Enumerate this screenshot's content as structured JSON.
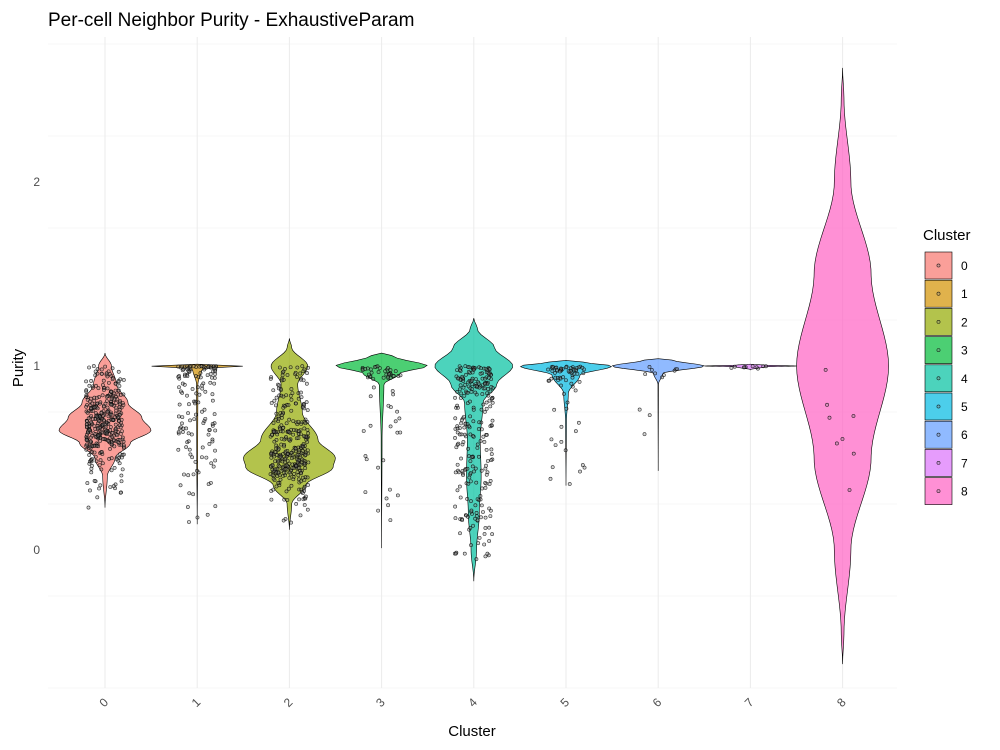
{
  "chart_data": {
    "type": "violin",
    "title": "Per-cell Neighbor Purity - ExhaustiveParam",
    "xlabel": "Cluster",
    "ylabel": "Purity",
    "ylim": [
      -0.75,
      2.75
    ],
    "yticks": [
      0,
      1,
      2
    ],
    "grid": true,
    "legend": {
      "title": "Cluster",
      "placement": "right"
    },
    "categories": [
      "0",
      "1",
      "2",
      "3",
      "4",
      "5",
      "6",
      "7",
      "8"
    ],
    "colors": [
      "#F8766D",
      "#D39200",
      "#93AA00",
      "#00BA38",
      "#00C19F",
      "#00B9E3",
      "#619CFF",
      "#DB72FB",
      "#FF61C3"
    ],
    "series": [
      {
        "name": "0",
        "min": 0.23,
        "max": 1.07,
        "median": 0.67,
        "profile": [
          [
            0.23,
            0.0
          ],
          [
            0.4,
            0.05
          ],
          [
            0.5,
            0.22
          ],
          [
            0.58,
            0.55
          ],
          [
            0.65,
            1.0
          ],
          [
            0.72,
            0.8
          ],
          [
            0.8,
            0.5
          ],
          [
            0.9,
            0.25
          ],
          [
            1.0,
            0.14
          ],
          [
            1.07,
            0.0
          ]
        ]
      },
      {
        "name": "1",
        "min": 0.14,
        "max": 1.01,
        "median": 1.0,
        "profile": [
          [
            0.14,
            0.0
          ],
          [
            0.5,
            0.01
          ],
          [
            0.9,
            0.015
          ],
          [
            0.985,
            0.1
          ],
          [
            1.0,
            1.0
          ],
          [
            1.01,
            0.0
          ]
        ]
      },
      {
        "name": "2",
        "min": 0.11,
        "max": 1.15,
        "median": 0.5,
        "profile": [
          [
            0.11,
            0.0
          ],
          [
            0.25,
            0.05
          ],
          [
            0.35,
            0.35
          ],
          [
            0.45,
            0.95
          ],
          [
            0.5,
            1.0
          ],
          [
            0.6,
            0.62
          ],
          [
            0.75,
            0.28
          ],
          [
            0.9,
            0.18
          ],
          [
            1.0,
            0.4
          ],
          [
            1.1,
            0.05
          ],
          [
            1.15,
            0.0
          ]
        ]
      },
      {
        "name": "3",
        "min": 0.01,
        "max": 1.07,
        "median": 1.0,
        "profile": [
          [
            0.01,
            0.0
          ],
          [
            0.6,
            0.01
          ],
          [
            0.9,
            0.05
          ],
          [
            0.96,
            0.4
          ],
          [
            1.0,
            1.0
          ],
          [
            1.05,
            0.3
          ],
          [
            1.07,
            0.0
          ]
        ]
      },
      {
        "name": "4",
        "min": -0.17,
        "max": 1.26,
        "median": 1.0,
        "profile": [
          [
            -0.17,
            0.0
          ],
          [
            0.0,
            0.06
          ],
          [
            0.2,
            0.12
          ],
          [
            0.4,
            0.16
          ],
          [
            0.6,
            0.14
          ],
          [
            0.8,
            0.2
          ],
          [
            0.9,
            0.5
          ],
          [
            1.0,
            0.85
          ],
          [
            1.1,
            0.45
          ],
          [
            1.2,
            0.08
          ],
          [
            1.26,
            0.0
          ]
        ]
      },
      {
        "name": "5",
        "min": 0.35,
        "max": 1.03,
        "median": 1.0,
        "profile": [
          [
            0.35,
            0.0
          ],
          [
            0.7,
            0.01
          ],
          [
            0.85,
            0.05
          ],
          [
            0.95,
            0.3
          ],
          [
            1.0,
            1.0
          ],
          [
            1.02,
            0.4
          ],
          [
            1.03,
            0.0
          ]
        ]
      },
      {
        "name": "6",
        "min": 0.43,
        "max": 1.04,
        "median": 1.0,
        "profile": [
          [
            0.43,
            0.0
          ],
          [
            0.9,
            0.005
          ],
          [
            0.96,
            0.1
          ],
          [
            1.0,
            1.0
          ],
          [
            1.03,
            0.35
          ],
          [
            1.04,
            0.0
          ]
        ]
      },
      {
        "name": "7",
        "min": 0.98,
        "max": 1.01,
        "median": 1.0,
        "profile": [
          [
            0.98,
            0.0
          ],
          [
            0.995,
            0.3
          ],
          [
            1.0,
            1.0
          ],
          [
            1.005,
            0.3
          ],
          [
            1.01,
            0.0
          ]
        ]
      },
      {
        "name": "8",
        "min": -0.62,
        "max": 2.62,
        "median": 1.0,
        "profile": [
          [
            -0.62,
            0.0
          ],
          [
            -0.45,
            0.03
          ],
          [
            0.0,
            0.18
          ],
          [
            0.5,
            0.62
          ],
          [
            1.0,
            1.0
          ],
          [
            1.5,
            0.62
          ],
          [
            2.0,
            0.18
          ],
          [
            2.45,
            0.03
          ],
          [
            2.62,
            0.0
          ]
        ]
      }
    ]
  }
}
